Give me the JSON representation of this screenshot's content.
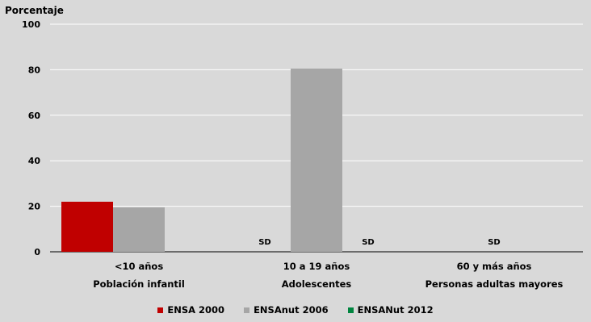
{
  "chart_data": {
    "type": "bar",
    "title": "",
    "ylabel": "Porcentaje",
    "xlabel": "",
    "ylim": [
      0,
      100
    ],
    "yticks": [
      0,
      20,
      40,
      60,
      80,
      100
    ],
    "grid": true,
    "legend_position": "bottom",
    "categories": [
      {
        "line1": "<10 años",
        "line2": "Población infantil"
      },
      {
        "line1": "10 a 19 años",
        "line2": "Adolescentes"
      },
      {
        "line1": "60 y más años",
        "line2": "Personas adultas mayores"
      }
    ],
    "series": [
      {
        "name": "ENSA 2000",
        "color": "#c00000",
        "values": [
          22,
          null,
          null
        ]
      },
      {
        "name": "ENSAnut 2006",
        "color": "#a6a6a6",
        "values": [
          19.5,
          80.5,
          null
        ]
      },
      {
        "name": "ENSANut 2012",
        "color": "#00853f",
        "values": [
          null,
          null,
          null
        ]
      }
    ],
    "annotations": [
      {
        "text": "SD",
        "category_index": 1,
        "series_index": 0
      },
      {
        "text": "SD",
        "category_index": 1,
        "series_index": 2
      },
      {
        "text": "SD",
        "category_index": 2,
        "series_index": 1
      }
    ]
  }
}
